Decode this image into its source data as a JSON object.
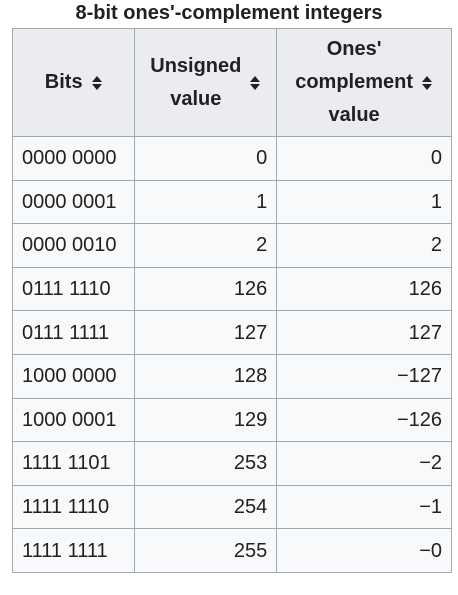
{
  "caption": "8-bit ones'-complement integers",
  "headers": {
    "bits": "Bits",
    "unsigned_line1": "Unsigned",
    "unsigned_line2": "value",
    "ones_line1": "Ones'",
    "ones_line2": "complement",
    "ones_line3": "value"
  },
  "icons": {
    "sort": "sort-icon"
  },
  "rows": [
    {
      "bits": "0000 0000",
      "unsigned": "0",
      "ones": "0"
    },
    {
      "bits": "0000 0001",
      "unsigned": "1",
      "ones": "1"
    },
    {
      "bits": "0000 0010",
      "unsigned": "2",
      "ones": "2"
    },
    {
      "bits": "0111 1110",
      "unsigned": "126",
      "ones": "126"
    },
    {
      "bits": "0111 1111",
      "unsigned": "127",
      "ones": "127"
    },
    {
      "bits": "1000 0000",
      "unsigned": "128",
      "ones": "−127"
    },
    {
      "bits": "1000 0001",
      "unsigned": "129",
      "ones": "−126"
    },
    {
      "bits": "1111 1101",
      "unsigned": "253",
      "ones": "−2"
    },
    {
      "bits": "1111 1110",
      "unsigned": "254",
      "ones": "−1"
    },
    {
      "bits": "1111 1111",
      "unsigned": "255",
      "ones": "−0"
    }
  ]
}
